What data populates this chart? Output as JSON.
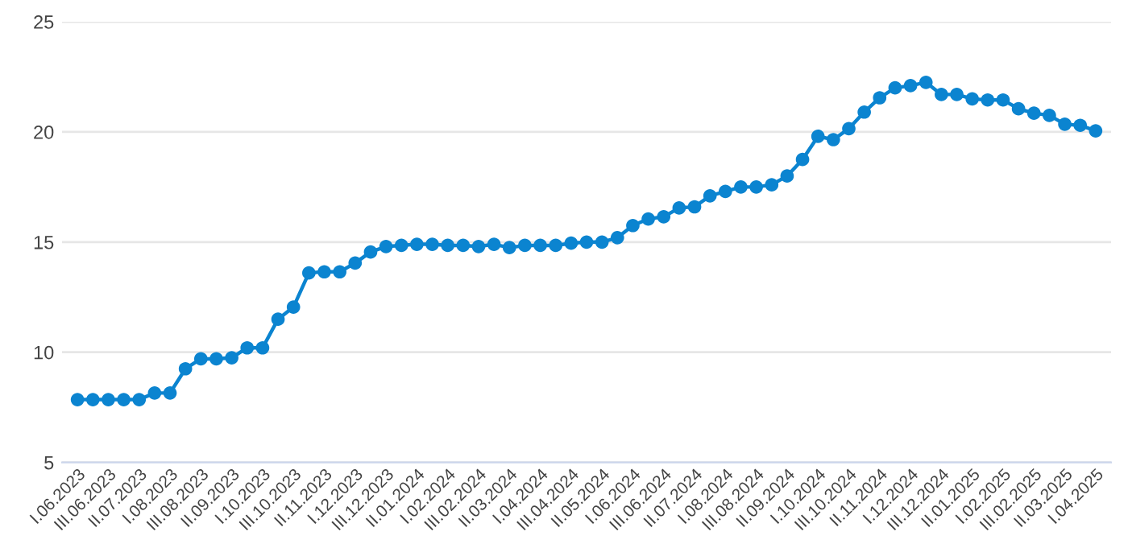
{
  "chart_data": {
    "type": "line",
    "categories": [
      "I.06.2023",
      null,
      "III.06.2023",
      null,
      "II.07.2023",
      null,
      "I.08.2023",
      null,
      "III.08.2023",
      null,
      "II.09.2023",
      null,
      "I.10.2023",
      null,
      "III.10.2023",
      null,
      "II.11.2023",
      null,
      "I.12.2023",
      null,
      "III.12.2023",
      null,
      "II.01.2024",
      null,
      "I.02.2024",
      null,
      "III.02.2024",
      null,
      "II.03.2024",
      null,
      "I.04.2024",
      null,
      "III.04.2024",
      null,
      "II.05.2024",
      null,
      "I.06.2024",
      null,
      "III.06.2024",
      null,
      "II.07.2024",
      null,
      "I.08.2024",
      null,
      "III.08.2024",
      null,
      "II.09.2024",
      null,
      "I.10.2024",
      null,
      "III.10.2024",
      null,
      "II.11.2024",
      null,
      "I.12.2024",
      null,
      "III.12.2024",
      null,
      "II.01.2025",
      null,
      "I.02.2025",
      null,
      "III.02.2025",
      null,
      "II.03.2025",
      null,
      "I.04.2025"
    ],
    "series": [
      {
        "color": "#0b84d0",
        "values": [
          7.85,
          7.85,
          7.85,
          7.85,
          7.85,
          8.15,
          8.15,
          9.25,
          9.7,
          9.7,
          9.75,
          10.2,
          10.2,
          11.5,
          12.05,
          13.6,
          13.65,
          13.65,
          14.05,
          14.55,
          14.8,
          14.85,
          14.9,
          14.9,
          14.85,
          14.85,
          14.8,
          14.9,
          14.75,
          14.85,
          14.85,
          14.85,
          14.95,
          15.0,
          15.0,
          15.2,
          15.75,
          16.05,
          16.15,
          16.55,
          16.6,
          17.1,
          17.3,
          17.5,
          17.5,
          17.6,
          18.0,
          18.75,
          19.8,
          19.65,
          20.15,
          20.9,
          21.55,
          22.0,
          22.1,
          22.25,
          21.7,
          21.7,
          21.5,
          21.45,
          21.45,
          21.05,
          20.85,
          20.75,
          20.35,
          20.3,
          20.05
        ]
      }
    ],
    "ylim": [
      5,
      25
    ],
    "yticks": [
      5,
      10,
      15,
      20,
      25
    ],
    "grid": "y",
    "marker": "circle",
    "line_style": "solid"
  }
}
